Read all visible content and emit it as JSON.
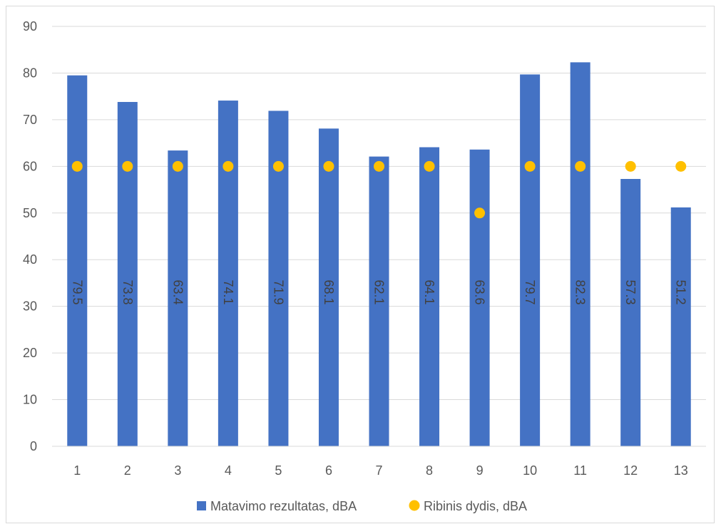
{
  "chart_data": {
    "type": "bar",
    "title": "",
    "xlabel": "",
    "ylabel": "",
    "categories": [
      "1",
      "2",
      "3",
      "4",
      "5",
      "6",
      "7",
      "8",
      "9",
      "10",
      "11",
      "12",
      "13"
    ],
    "ylim": [
      0,
      90
    ],
    "yticks": [
      0,
      10,
      20,
      30,
      40,
      50,
      60,
      70,
      80,
      90
    ],
    "grid": true,
    "legend_position": "bottom",
    "series": [
      {
        "name": "Matavimo rezultatas, dBA",
        "kind": "bar",
        "color": "#4472C4",
        "values": [
          79.5,
          73.8,
          63.4,
          74.1,
          71.9,
          68.1,
          62.1,
          64.1,
          63.6,
          79.7,
          82.3,
          57.3,
          51.2
        ],
        "data_labels": [
          "79.5",
          "73.8",
          "63.4",
          "74.1",
          "71.9",
          "68.1",
          "62.1",
          "64.1",
          "63.6",
          "79.7",
          "82.3",
          "57.3",
          "51.2"
        ]
      },
      {
        "name": "Ribinis dydis, dBA",
        "kind": "scatter",
        "color": "#FFC000",
        "values": [
          60,
          60,
          60,
          60,
          60,
          60,
          60,
          60,
          50,
          60,
          60,
          60,
          60
        ]
      }
    ]
  }
}
